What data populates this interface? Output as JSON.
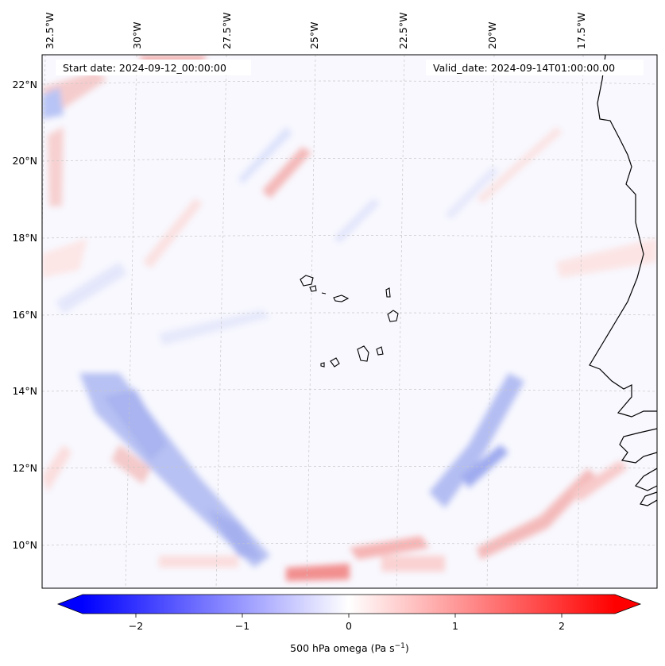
{
  "map": {
    "start_date": "Start date: 2024-09-12_00:00:00",
    "valid_date": "Valid_date: 2024-09-14T01:00:00.00",
    "lon_labels": [
      "32.5°W",
      "30°W",
      "27.5°W",
      "25°W",
      "22.5°W",
      "20°W",
      "17.5°W"
    ],
    "lat_labels": [
      "22°N",
      "20°N",
      "18°N",
      "16°N",
      "14°N",
      "12°N",
      "10°N"
    ],
    "field": "500 hPa omega",
    "units": "Pa s",
    "units_exponent": "−1"
  },
  "colorbar": {
    "ticks": [
      "−2",
      "−1",
      "0",
      "1",
      "2"
    ],
    "tick_values": [
      -2,
      -1,
      0,
      1,
      2
    ],
    "range": [
      -2.5,
      2.5
    ],
    "colormap": "bwr",
    "extend": "both",
    "colors": {
      "low": "#0000ff",
      "mid": "#ffffff",
      "high": "#ff0000",
      "coast": "#000000",
      "grid": "#bbbbbb"
    }
  }
}
